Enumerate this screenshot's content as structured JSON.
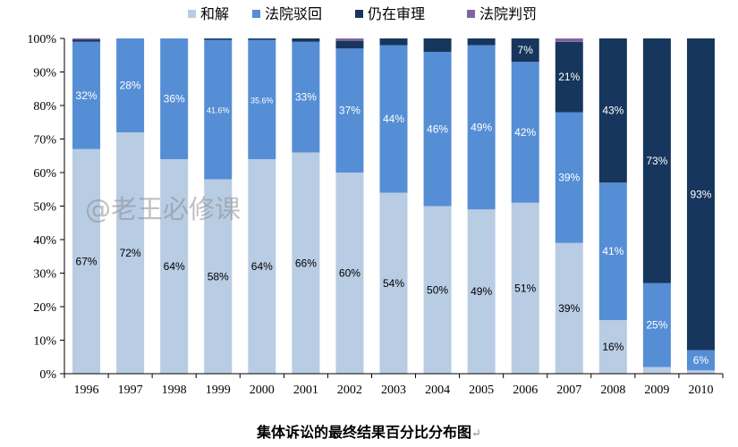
{
  "chart_data": {
    "type": "bar",
    "stacked": true,
    "percent": true,
    "title": "集体诉讼的最终结果百分比分布图",
    "title_suffix": "↵",
    "watermark": "@老王必修课",
    "categories": [
      "1996",
      "1997",
      "1998",
      "1999",
      "2000",
      "2001",
      "2002",
      "2003",
      "2004",
      "2005",
      "2006",
      "2007",
      "2008",
      "2009",
      "2010"
    ],
    "ylim": [
      0,
      100
    ],
    "yticks": [
      "0%",
      "10%",
      "20%",
      "30%",
      "40%",
      "50%",
      "60%",
      "70%",
      "80%",
      "90%",
      "100%"
    ],
    "legend_position": "top",
    "grid": false,
    "series": [
      {
        "name": "和解",
        "color": "#b8cce4",
        "label_color": "#000000",
        "values": [
          67,
          72,
          64,
          58,
          64,
          66,
          60,
          54,
          50,
          49,
          51,
          39,
          16,
          2,
          1
        ],
        "labels": [
          "67%",
          "72%",
          "64%",
          "58%",
          "64%",
          "66%",
          "60%",
          "54%",
          "50%",
          "49%",
          "51%",
          "39%",
          "16%",
          "",
          ""
        ]
      },
      {
        "name": "法院驳回",
        "color": "#558ed5",
        "label_color": "#ffffff",
        "values": [
          32,
          28,
          36,
          41.6,
          35.6,
          33,
          37,
          44,
          46,
          49,
          42,
          39,
          41,
          25,
          6
        ],
        "labels": [
          "32%",
          "28%",
          "36%",
          "41.6%",
          "35.6%",
          "33%",
          "37%",
          "44%",
          "46%",
          "49%",
          "42%",
          "39%",
          "41%",
          "25%",
          "6%"
        ]
      },
      {
        "name": "仍在审理",
        "color": "#17365d",
        "label_color": "#ffffff",
        "values": [
          0.6,
          0,
          0,
          0.4,
          0.4,
          1,
          2.3,
          2,
          4,
          2,
          7,
          21,
          43,
          73,
          93
        ],
        "labels": [
          "",
          "",
          "",
          "",
          "",
          "",
          "",
          "",
          "",
          "",
          "7%",
          "21%",
          "43%",
          "73%",
          "93%"
        ]
      },
      {
        "name": "法院判罚",
        "color": "#8064a2",
        "label_color": "#ffffff",
        "values": [
          0.4,
          0,
          0,
          0,
          0,
          0,
          0.7,
          0,
          0,
          0,
          0,
          1,
          0,
          0,
          0
        ],
        "labels": [
          "",
          "",
          "",
          "",
          "",
          "",
          "",
          "",
          "",
          "",
          "",
          "",
          "",
          "",
          ""
        ]
      }
    ]
  }
}
